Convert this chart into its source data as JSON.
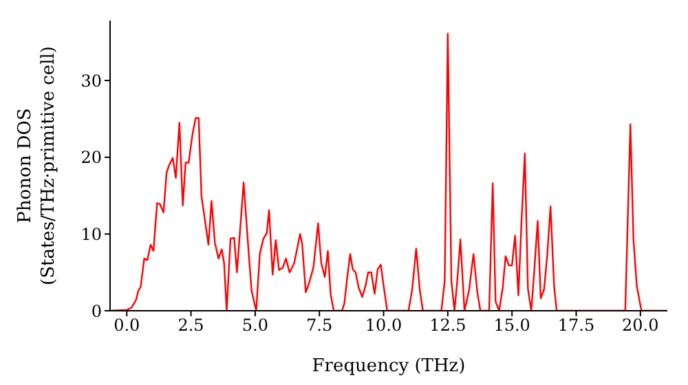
{
  "chart_data": {
    "type": "line",
    "xlabel": "Frequency (THz)",
    "ylabel": "Phonon DOS\n(States/THz·primitive cell)",
    "x": [
      -0.65,
      0,
      0.18,
      0.36,
      0.45,
      0.54,
      0.68,
      0.8,
      0.93,
      1.04,
      1.18,
      1.29,
      1.43,
      1.55,
      1.64,
      1.79,
      1.91,
      2.05,
      2.18,
      2.29,
      2.41,
      2.55,
      2.68,
      2.8,
      2.91,
      3.04,
      3.18,
      3.3,
      3.43,
      3.57,
      3.7,
      3.79,
      3.89,
      4.04,
      4.18,
      4.29,
      4.55,
      4.73,
      4.86,
      5.04,
      5.18,
      5.32,
      5.45,
      5.54,
      5.68,
      5.8,
      5.93,
      6.07,
      6.2,
      6.34,
      6.52,
      6.75,
      6.83,
      6.97,
      7.1,
      7.27,
      7.45,
      7.57,
      7.71,
      7.83,
      7.94,
      8.06,
      8.38,
      8.47,
      8.59,
      8.7,
      8.8,
      8.91,
      9.03,
      9.17,
      9.3,
      9.4,
      9.52,
      9.65,
      9.77,
      9.89,
      10.0,
      10.14,
      10.97,
      11.11,
      11.27,
      11.41,
      11.53,
      12.25,
      12.38,
      12.5,
      12.64,
      12.76,
      12.87,
      12.99,
      13.15,
      13.33,
      13.5,
      13.65,
      13.77,
      14.11,
      14.25,
      14.36,
      14.5,
      14.64,
      14.75,
      14.88,
      15.0,
      15.12,
      15.25,
      15.37,
      15.5,
      15.62,
      15.75,
      15.87,
      16.0,
      16.12,
      16.25,
      16.37,
      16.5,
      16.64,
      16.74,
      19.41,
      19.61,
      19.73,
      19.86,
      20.04,
      21.05
    ],
    "series": [
      {
        "color": "#ff0000",
        "values": [
          0,
          0.1,
          0.4,
          1.4,
          2.6,
          3.1,
          6.8,
          6.6,
          8.6,
          7.8,
          14.0,
          13.9,
          12.8,
          18.0,
          18.9,
          19.9,
          17.3,
          24.5,
          13.7,
          19.3,
          19.3,
          22.8,
          25.1,
          25.1,
          14.9,
          11.9,
          8.6,
          14.3,
          8.9,
          6.8,
          8.0,
          6.2,
          0,
          9.4,
          9.5,
          5.0,
          16.7,
          8.3,
          2.6,
          0,
          7.4,
          9.4,
          10.1,
          13.1,
          4.7,
          9.2,
          5.3,
          5.6,
          6.8,
          5.0,
          6.2,
          10.0,
          8.7,
          2.4,
          3.6,
          5.7,
          11.4,
          6.3,
          4.4,
          7.8,
          2.1,
          0,
          0,
          0.9,
          4.5,
          7.4,
          5.4,
          5.0,
          3.0,
          1.8,
          3.3,
          5.0,
          5.0,
          2.2,
          5.4,
          6.0,
          3.3,
          0,
          0,
          2.7,
          8.1,
          2.7,
          0,
          0,
          3.9,
          36.1,
          3.9,
          0,
          3.9,
          9.3,
          0,
          2.7,
          7.4,
          2.4,
          0,
          0,
          16.6,
          1.2,
          0,
          3.0,
          7.1,
          5.9,
          5.9,
          9.8,
          2.0,
          11.6,
          20.5,
          2.9,
          0,
          5.3,
          11.7,
          1.6,
          2.8,
          7.1,
          13.6,
          3.2,
          0,
          0,
          24.3,
          9.3,
          3.2,
          0,
          0
        ]
      }
    ],
    "xlim": [
      -0.65,
      21.05
    ],
    "ylim": [
      0,
      37.8
    ],
    "xticks": [
      {
        "value": 0,
        "label": "0.0"
      },
      {
        "value": 2.5,
        "label": "2.5"
      },
      {
        "value": 5,
        "label": "5.0"
      },
      {
        "value": 7.5,
        "label": "7.5"
      },
      {
        "value": 10,
        "label": "10.0"
      },
      {
        "value": 12.5,
        "label": "12.5"
      },
      {
        "value": 15,
        "label": "15.0"
      },
      {
        "value": 17.5,
        "label": "17.5"
      },
      {
        "value": 20,
        "label": "20.0"
      }
    ],
    "yticks": [
      0,
      10,
      20,
      30
    ],
    "grid": false,
    "legend": false,
    "marker": "none",
    "line_style": "solid"
  }
}
